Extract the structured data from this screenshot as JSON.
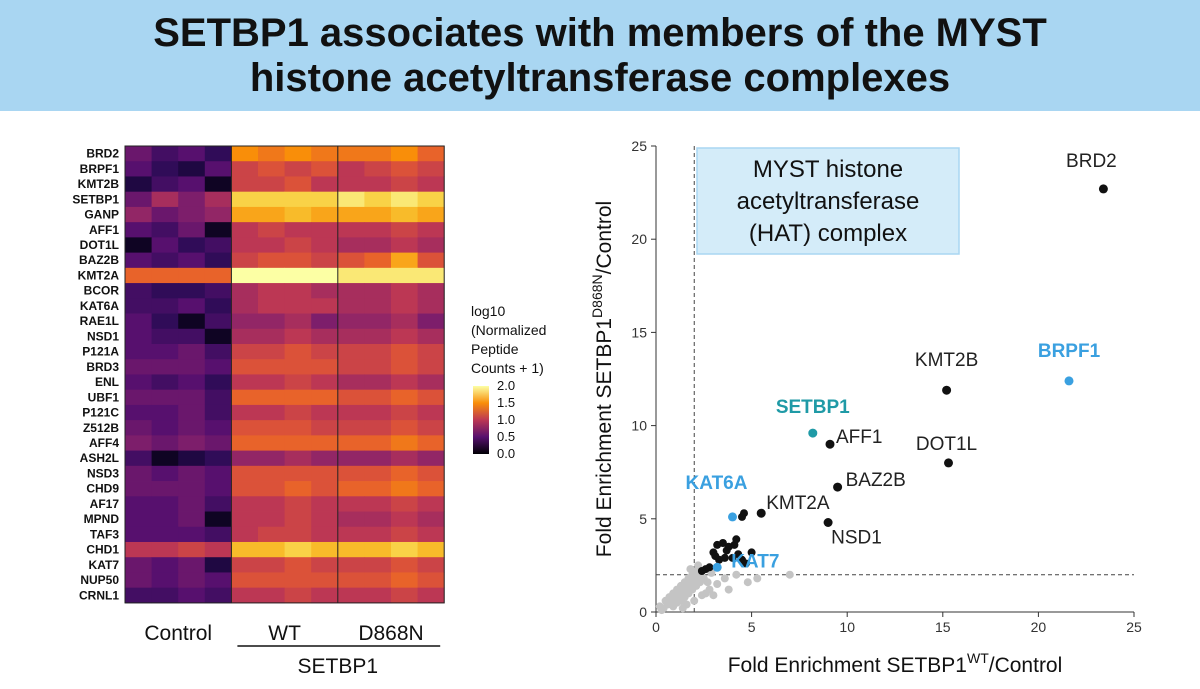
{
  "header": {
    "title_line1": "SETBP1 associates with members of the MYST",
    "title_line2": "histone acetyltransferase complexes"
  },
  "heatmap": {
    "genes": [
      "BRD2",
      "BRPF1",
      "KMT2B",
      "SETBP1",
      "GANP",
      "AFF1",
      "DOT1L",
      "BAZ2B",
      "KMT2A",
      "BCOR",
      "KAT6A",
      "RAE1L",
      "NSD1",
      "P121A",
      "BRD3",
      "ENL",
      "UBF1",
      "P121C",
      "Z512B",
      "AFF4",
      "ASH2L",
      "NSD3",
      "CHD9",
      "AF17",
      "MPND",
      "TAF3",
      "CHD1",
      "KAT7",
      "NUP50",
      "CRNL1"
    ],
    "groups": [
      "Control",
      "WT",
      "D868N"
    ],
    "parent_group": "SETBP1",
    "columns_per_group": 4,
    "values": [
      [
        0.6,
        0.4,
        0.5,
        0.3,
        1.5,
        1.4,
        1.5,
        1.4,
        1.4,
        1.4,
        1.5,
        1.3
      ],
      [
        0.5,
        0.3,
        0.2,
        0.5,
        1.1,
        1.2,
        1.1,
        1.2,
        1.0,
        1.1,
        1.2,
        1.1
      ],
      [
        0.2,
        0.4,
        0.5,
        0.1,
        1.1,
        1.1,
        1.2,
        1.0,
        1.0,
        1.0,
        1.1,
        1.0
      ],
      [
        0.6,
        0.9,
        0.7,
        0.9,
        1.8,
        1.8,
        1.8,
        1.8,
        1.9,
        1.8,
        1.9,
        1.8
      ],
      [
        0.8,
        0.6,
        0.7,
        0.8,
        1.6,
        1.6,
        1.7,
        1.6,
        1.6,
        1.6,
        1.7,
        1.6
      ],
      [
        0.5,
        0.4,
        0.6,
        0.1,
        1.0,
        1.1,
        1.0,
        1.0,
        1.0,
        1.0,
        1.1,
        1.0
      ],
      [
        0.1,
        0.5,
        0.3,
        0.4,
        1.0,
        1.0,
        1.1,
        1.0,
        0.9,
        0.9,
        1.0,
        0.9
      ],
      [
        0.5,
        0.4,
        0.5,
        0.3,
        1.1,
        1.2,
        1.2,
        1.1,
        1.2,
        1.3,
        1.6,
        1.2
      ],
      [
        1.3,
        1.3,
        1.3,
        1.3,
        2.0,
        2.0,
        2.0,
        2.0,
        1.9,
        1.9,
        1.9,
        1.9
      ],
      [
        0.4,
        0.3,
        0.3,
        0.4,
        0.9,
        1.0,
        1.0,
        0.9,
        0.9,
        0.9,
        1.0,
        0.9
      ],
      [
        0.4,
        0.4,
        0.5,
        0.3,
        0.9,
        1.0,
        1.0,
        1.0,
        0.9,
        0.9,
        1.0,
        0.9
      ],
      [
        0.5,
        0.3,
        0.1,
        0.4,
        0.8,
        0.8,
        0.9,
        0.7,
        0.8,
        0.8,
        0.9,
        0.7
      ],
      [
        0.5,
        0.4,
        0.4,
        0.1,
        0.9,
        0.9,
        1.0,
        0.9,
        0.9,
        0.9,
        1.0,
        0.9
      ],
      [
        0.5,
        0.5,
        0.6,
        0.4,
        1.1,
        1.1,
        1.2,
        1.1,
        1.1,
        1.1,
        1.2,
        1.1
      ],
      [
        0.6,
        0.6,
        0.6,
        0.5,
        1.2,
        1.2,
        1.2,
        1.2,
        1.1,
        1.1,
        1.2,
        1.1
      ],
      [
        0.5,
        0.4,
        0.5,
        0.3,
        1.0,
        1.0,
        1.1,
        1.0,
        0.9,
        0.9,
        1.0,
        0.9
      ],
      [
        0.6,
        0.6,
        0.6,
        0.4,
        1.3,
        1.3,
        1.3,
        1.3,
        1.2,
        1.2,
        1.3,
        1.2
      ],
      [
        0.5,
        0.5,
        0.6,
        0.4,
        1.0,
        1.0,
        1.1,
        1.0,
        1.0,
        1.0,
        1.1,
        1.0
      ],
      [
        0.6,
        0.5,
        0.6,
        0.5,
        1.2,
        1.2,
        1.2,
        1.1,
        1.1,
        1.1,
        1.2,
        1.1
      ],
      [
        0.7,
        0.6,
        0.7,
        0.6,
        1.3,
        1.3,
        1.3,
        1.3,
        1.3,
        1.3,
        1.4,
        1.3
      ],
      [
        0.4,
        0.1,
        0.2,
        0.3,
        0.8,
        0.8,
        0.9,
        0.8,
        0.8,
        0.8,
        0.9,
        0.8
      ],
      [
        0.6,
        0.5,
        0.6,
        0.5,
        1.2,
        1.2,
        1.2,
        1.2,
        1.2,
        1.2,
        1.3,
        1.2
      ],
      [
        0.6,
        0.6,
        0.6,
        0.5,
        1.2,
        1.2,
        1.3,
        1.2,
        1.3,
        1.3,
        1.4,
        1.3
      ],
      [
        0.5,
        0.5,
        0.6,
        0.4,
        1.0,
        1.0,
        1.1,
        1.0,
        1.0,
        1.0,
        1.1,
        1.0
      ],
      [
        0.5,
        0.5,
        0.6,
        0.1,
        1.0,
        1.0,
        1.1,
        1.0,
        0.9,
        0.9,
        1.0,
        0.9
      ],
      [
        0.5,
        0.5,
        0.5,
        0.4,
        1.0,
        1.1,
        1.1,
        1.0,
        1.0,
        1.0,
        1.1,
        1.0
      ],
      [
        1.0,
        1.0,
        1.1,
        1.0,
        1.7,
        1.7,
        1.8,
        1.7,
        1.7,
        1.7,
        1.8,
        1.7
      ],
      [
        0.6,
        0.5,
        0.6,
        0.2,
        1.1,
        1.1,
        1.2,
        1.1,
        1.1,
        1.1,
        1.2,
        1.1
      ],
      [
        0.6,
        0.5,
        0.6,
        0.5,
        1.2,
        1.2,
        1.2,
        1.2,
        1.2,
        1.2,
        1.3,
        1.2
      ],
      [
        0.4,
        0.4,
        0.5,
        0.4,
        1.0,
        1.0,
        1.1,
        1.0,
        1.0,
        1.0,
        1.1,
        1.0
      ]
    ],
    "legend_title": [
      "log10",
      "(Normalized",
      "Peptide",
      "Counts + 1)"
    ],
    "legend_ticks": [
      "2.0",
      "1.5",
      "1.0",
      "0.5",
      "0.0"
    ],
    "value_range": [
      0,
      2
    ]
  },
  "chart_data": {
    "type": "scatter",
    "xlabel": "Fold Enrichment SETBP1",
    "xlabel_sup": "WT",
    "xlabel_suffix": "/Control",
    "ylabel": "Fold Enrichment SETBP1",
    "ylabel_sup": "D868N",
    "ylabel_suffix": "/Control",
    "xlim": [
      0,
      25
    ],
    "ylim": [
      0,
      25
    ],
    "xticks": [
      0,
      5,
      10,
      15,
      20,
      25
    ],
    "yticks": [
      0,
      5,
      10,
      15,
      20,
      25
    ],
    "threshold_x": 2,
    "threshold_y": 2,
    "colors": {
      "black": "#111111",
      "blue": "#3aa0e0",
      "teal": "#1f9aa6",
      "gray": "#c4c4c4"
    },
    "labeled_points": [
      {
        "name": "BRD2",
        "x": 23.4,
        "y": 22.7,
        "color": "black"
      },
      {
        "name": "BRPF1",
        "x": 21.6,
        "y": 12.4,
        "color": "blue",
        "bold": true
      },
      {
        "name": "KMT2B",
        "x": 15.2,
        "y": 11.9,
        "color": "black"
      },
      {
        "name": "DOT1L",
        "x": 15.3,
        "y": 8.0,
        "color": "black"
      },
      {
        "name": "SETBP1",
        "x": 8.2,
        "y": 9.6,
        "color": "teal",
        "bold": true
      },
      {
        "name": "AFF1",
        "x": 9.1,
        "y": 9.0,
        "color": "black"
      },
      {
        "name": "BAZ2B",
        "x": 9.5,
        "y": 6.7,
        "color": "black"
      },
      {
        "name": "KMT2A",
        "x": 5.5,
        "y": 5.3,
        "color": "black"
      },
      {
        "name": "NSD1",
        "x": 9.0,
        "y": 4.8,
        "color": "black"
      },
      {
        "name": "KAT6A",
        "x": 4.0,
        "y": 5.1,
        "color": "blue",
        "bold": true
      },
      {
        "name": "KAT7",
        "x": 3.2,
        "y": 2.4,
        "color": "blue",
        "bold": true
      }
    ],
    "other_points_black": [
      [
        4.5,
        5.1
      ],
      [
        4.6,
        5.3
      ],
      [
        3.0,
        3.2
      ],
      [
        3.2,
        3.6
      ],
      [
        3.5,
        3.7
      ],
      [
        3.7,
        3.3
      ],
      [
        3.8,
        3.5
      ],
      [
        4.1,
        3.6
      ],
      [
        4.3,
        3.1
      ],
      [
        4.5,
        2.8
      ],
      [
        4.0,
        2.9
      ],
      [
        3.3,
        2.8
      ],
      [
        2.8,
        2.4
      ],
      [
        2.6,
        2.3
      ],
      [
        2.4,
        2.2
      ],
      [
        5.0,
        3.2
      ],
      [
        4.7,
        2.6
      ],
      [
        3.6,
        2.9
      ],
      [
        4.2,
        3.9
      ],
      [
        3.1,
        3.0
      ]
    ],
    "other_points_gray": [
      [
        0.4,
        0.2
      ],
      [
        0.6,
        0.4
      ],
      [
        0.8,
        0.5
      ],
      [
        1.0,
        0.7
      ],
      [
        1.2,
        0.9
      ],
      [
        1.4,
        1.1
      ],
      [
        1.6,
        1.3
      ],
      [
        1.8,
        1.5
      ],
      [
        2.0,
        1.7
      ],
      [
        2.2,
        1.9
      ],
      [
        0.9,
        0.3
      ],
      [
        1.1,
        0.5
      ],
      [
        1.3,
        0.6
      ],
      [
        1.5,
        0.8
      ],
      [
        1.7,
        1.0
      ],
      [
        1.9,
        1.2
      ],
      [
        2.1,
        1.4
      ],
      [
        2.3,
        1.6
      ],
      [
        2.5,
        1.8
      ],
      [
        0.5,
        0.6
      ],
      [
        0.7,
        0.8
      ],
      [
        0.9,
        1.0
      ],
      [
        1.1,
        1.2
      ],
      [
        1.3,
        1.4
      ],
      [
        1.5,
        1.6
      ],
      [
        1.7,
        1.8
      ],
      [
        1.9,
        2.0
      ],
      [
        2.1,
        2.2
      ],
      [
        1.6,
        0.4
      ],
      [
        2.0,
        0.6
      ],
      [
        2.4,
        0.9
      ],
      [
        2.8,
        1.2
      ],
      [
        3.2,
        1.5
      ],
      [
        3.6,
        1.8
      ],
      [
        0.3,
        0.1
      ],
      [
        0.2,
        0.3
      ],
      [
        1.4,
        0.2
      ],
      [
        2.6,
        1.0
      ],
      [
        3.0,
        0.9
      ],
      [
        2.7,
        1.6
      ],
      [
        7.0,
        2.0
      ],
      [
        4.2,
        2.0
      ],
      [
        3.8,
        1.2
      ],
      [
        1.8,
        2.3
      ],
      [
        2.2,
        2.5
      ],
      [
        5.3,
        1.8
      ],
      [
        4.8,
        1.6
      ],
      [
        2.9,
        2.1
      ]
    ],
    "annotation_box_text": [
      "MYST histone",
      "acetyltransferase",
      "(HAT) complex"
    ]
  }
}
